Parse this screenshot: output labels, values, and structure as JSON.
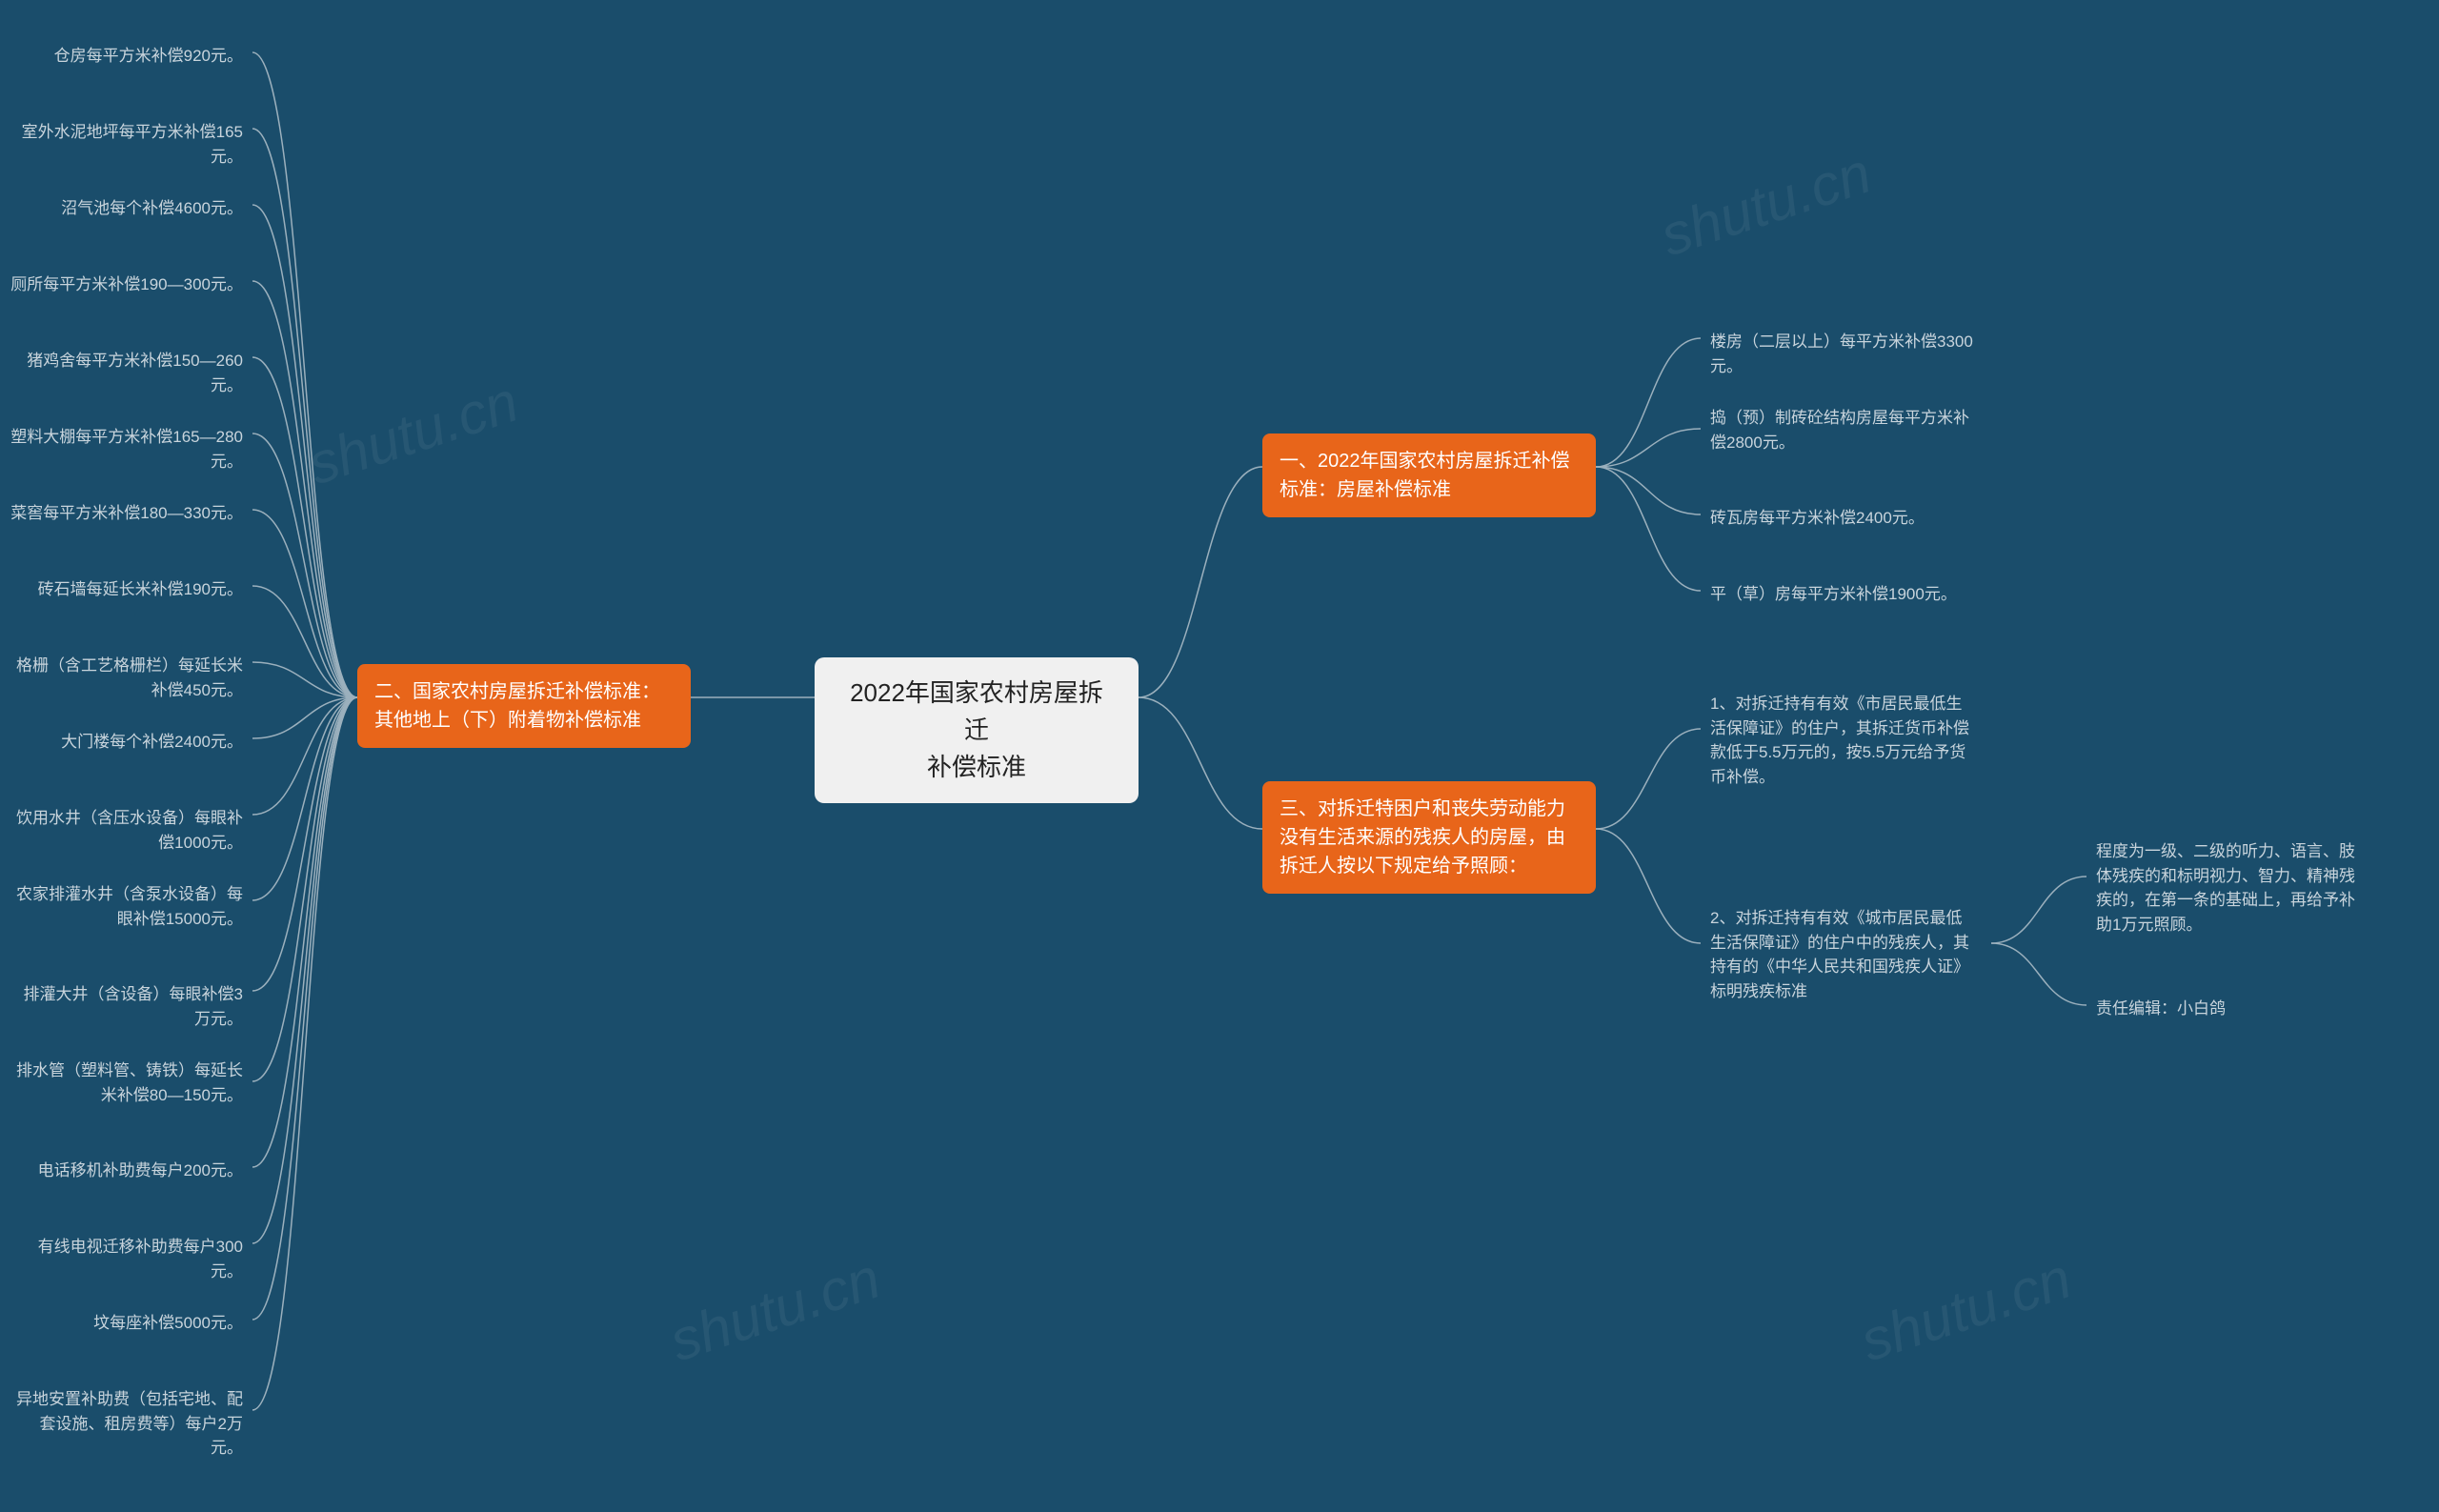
{
  "colors": {
    "background": "#1a4d6b",
    "center_bg": "#f0f0f0",
    "center_text": "#222222",
    "orange": "#e8651a",
    "orange_text": "#ffffff",
    "leaf_text": "#c8d4dc",
    "connector": "#9bb0bd",
    "watermark": "rgba(255,255,255,0.06)"
  },
  "watermark_text": "shutu.cn",
  "center": {
    "line1": "2022年国家农村房屋拆迁",
    "line2": "补偿标准"
  },
  "branch1": {
    "title_line1": "一、2022年国家农村房屋拆迁补偿",
    "title_line2": "标准：房屋补偿标准",
    "leaves": [
      "楼房（二层以上）每平方米补偿3300元。",
      "捣（预）制砖砼结构房屋每平方米补偿2800元。",
      "砖瓦房每平方米补偿2400元。",
      "平（草）房每平方米补偿1900元。"
    ]
  },
  "branch2": {
    "title_line1": "二、国家农村房屋拆迁补偿标准：",
    "title_line2": "其他地上（下）附着物补偿标准",
    "leaves": [
      "仓房每平方米补偿920元。",
      "室外水泥地坪每平方米补偿165元。",
      "沼气池每个补偿4600元。",
      "厕所每平方米补偿190—300元。",
      "猪鸡舍每平方米补偿150—260元。",
      "塑料大棚每平方米补偿165—280元。",
      "菜窖每平方米补偿180—330元。",
      "砖石墙每延长米补偿190元。",
      "格栅（含工艺格栅栏）每延长米补偿450元。",
      "大门楼每个补偿2400元。",
      "饮用水井（含压水设备）每眼补偿1000元。",
      "农家排灌水井（含泵水设备）每眼补偿15000元。",
      "排灌大井（含设备）每眼补偿3万元。",
      "排水管（塑料管、铸铁）每延长米补偿80—150元。",
      "电话移机补助费每户200元。",
      "有线电视迁移补助费每户300元。",
      "坟每座补偿5000元。",
      "异地安置补助费（包括宅地、配套设施、租房费等）每户2万元。"
    ]
  },
  "branch3": {
    "title_line1": "三、对拆迁特困户和丧失劳动能力",
    "title_line2": "没有生活来源的残疾人的房屋，由",
    "title_line3": "拆迁人按以下规定给予照顾：",
    "sub1": "1、对拆迁持有有效《市居民最低生活保障证》的住户，其拆迁货币补偿款低于5.5万元的，按5.5万元给予货币补偿。",
    "sub2": "2、对拆迁持有有效《城市居民最低生活保障证》的住户中的残疾人，其持有的《中华人民共和国残疾人证》标明残疾标准",
    "sub2_children": [
      "程度为一级、二级的听力、语言、肢体残疾的和标明视力、智力、精神残疾的，在第一条的基础上，再给予补助1万元照顾。",
      "责任编辑：小白鸽"
    ]
  }
}
